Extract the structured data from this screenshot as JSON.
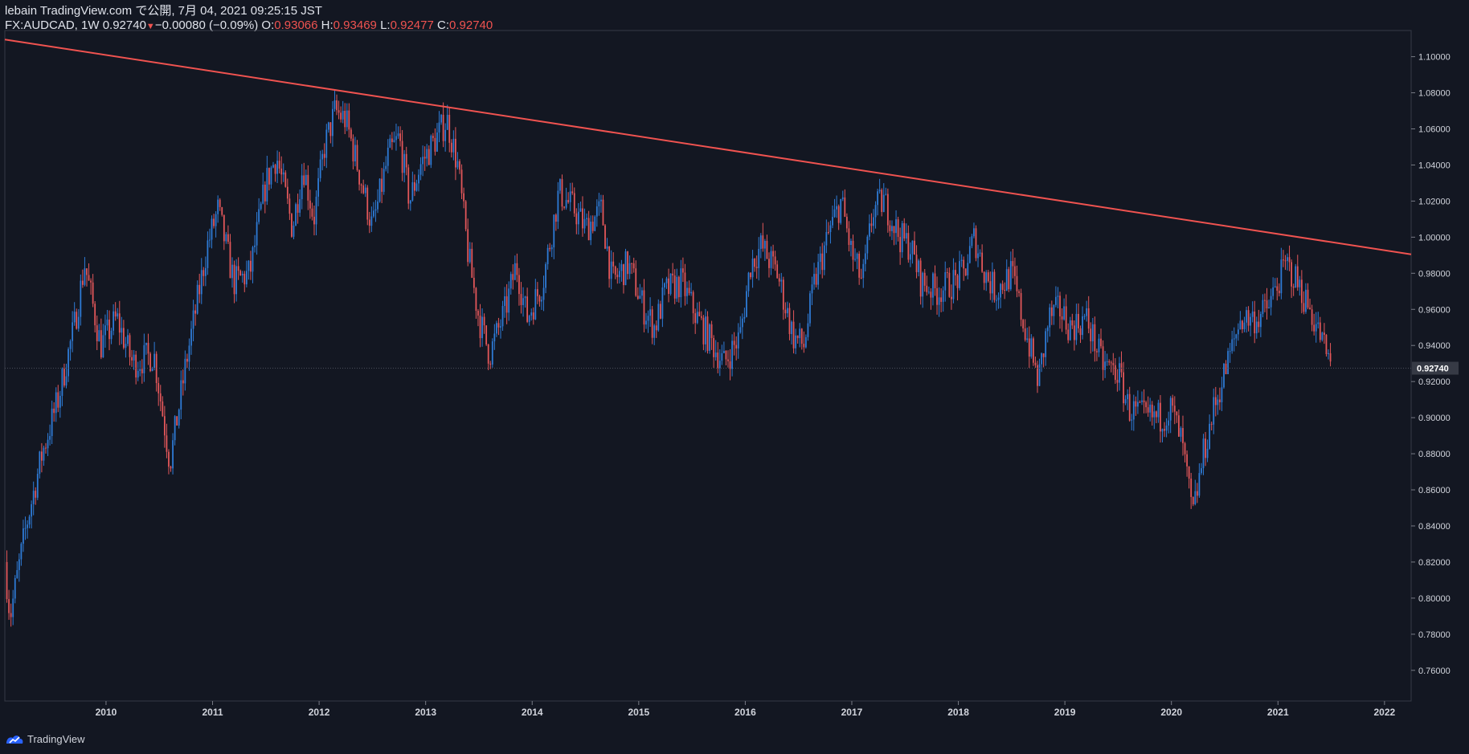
{
  "header": {
    "publish_line": "lebain TradingView.com で公開, 7月 04, 2021 09:25:15 JST",
    "symbol": "FX:AUDCAD, 1W",
    "last": "0.92740",
    "change": "−0.00080 (−0.09%)",
    "o_label": "O:",
    "o_value": "0.93066",
    "h_label": "H:",
    "h_value": "0.93469",
    "l_label": "L:",
    "l_value": "0.92477",
    "c_label": "C:",
    "c_value": "0.92740"
  },
  "brand": {
    "name": "TradingView",
    "icon": "tradingview-logo-icon"
  },
  "colors": {
    "background": "#131722",
    "up": "#2e7bd6",
    "down": "#e3575a",
    "trendline": "#f05350",
    "axis_text": "#d1d4dc",
    "price_label_bg": "#363a45"
  },
  "chart_data": {
    "type": "candlestick",
    "symbol": "FX:AUDCAD",
    "interval": "1W",
    "last_price": 0.9274,
    "ylim": [
      0.743,
      1.1145
    ],
    "xlim": [
      2009.05,
      2022.25
    ],
    "y_ticks": [
      "0.76000",
      "0.78000",
      "0.80000",
      "0.82000",
      "0.84000",
      "0.86000",
      "0.88000",
      "0.90000",
      "0.92000",
      "0.94000",
      "0.96000",
      "0.98000",
      "1.00000",
      "1.02000",
      "1.04000",
      "1.06000",
      "1.08000",
      "1.10000"
    ],
    "x_ticks": [
      "2010",
      "2011",
      "2012",
      "2013",
      "2014",
      "2015",
      "2016",
      "2017",
      "2018",
      "2019",
      "2020",
      "2021",
      "2022"
    ],
    "price_path": [
      [
        2009.05,
        0.82
      ],
      [
        2009.1,
        0.79
      ],
      [
        2009.25,
        0.84
      ],
      [
        2009.4,
        0.88
      ],
      [
        2009.55,
        0.91
      ],
      [
        2009.7,
        0.95
      ],
      [
        2009.8,
        0.985
      ],
      [
        2009.95,
        0.94
      ],
      [
        2010.1,
        0.955
      ],
      [
        2010.25,
        0.93
      ],
      [
        2010.45,
        0.935
      ],
      [
        2010.6,
        0.875
      ],
      [
        2010.75,
        0.93
      ],
      [
        2010.95,
        0.995
      ],
      [
        2011.05,
        1.015
      ],
      [
        2011.2,
        0.975
      ],
      [
        2011.35,
        0.98
      ],
      [
        2011.5,
        1.03
      ],
      [
        2011.6,
        1.045
      ],
      [
        2011.75,
        1.005
      ],
      [
        2011.85,
        1.04
      ],
      [
        2011.95,
        1.01
      ],
      [
        2012.05,
        1.05
      ],
      [
        2012.15,
        1.07
      ],
      [
        2012.25,
        1.065
      ],
      [
        2012.4,
        1.03
      ],
      [
        2012.5,
        1.005
      ],
      [
        2012.65,
        1.045
      ],
      [
        2012.75,
        1.055
      ],
      [
        2012.85,
        1.02
      ],
      [
        2012.95,
        1.04
      ],
      [
        2013.05,
        1.05
      ],
      [
        2013.2,
        1.065
      ],
      [
        2013.3,
        1.04
      ],
      [
        2013.4,
        0.99
      ],
      [
        2013.5,
        0.955
      ],
      [
        2013.6,
        0.935
      ],
      [
        2013.75,
        0.96
      ],
      [
        2013.85,
        0.985
      ],
      [
        2013.95,
        0.955
      ],
      [
        2014.1,
        0.975
      ],
      [
        2014.25,
        1.025
      ],
      [
        2014.4,
        1.015
      ],
      [
        2014.5,
        1.005
      ],
      [
        2014.65,
        1.015
      ],
      [
        2014.75,
        0.975
      ],
      [
        2014.9,
        0.985
      ],
      [
        2015.05,
        0.96
      ],
      [
        2015.15,
        0.95
      ],
      [
        2015.25,
        0.97
      ],
      [
        2015.4,
        0.975
      ],
      [
        2015.55,
        0.955
      ],
      [
        2015.7,
        0.94
      ],
      [
        2015.8,
        0.93
      ],
      [
        2015.95,
        0.945
      ],
      [
        2016.05,
        0.985
      ],
      [
        2016.15,
        0.995
      ],
      [
        2016.3,
        0.98
      ],
      [
        2016.45,
        0.945
      ],
      [
        2016.55,
        0.94
      ],
      [
        2016.65,
        0.975
      ],
      [
        2016.8,
        1.005
      ],
      [
        2016.9,
        1.02
      ],
      [
        2017.0,
        0.99
      ],
      [
        2017.1,
        0.975
      ],
      [
        2017.2,
        1.015
      ],
      [
        2017.3,
        1.02
      ],
      [
        2017.45,
        1.0
      ],
      [
        2017.55,
        0.995
      ],
      [
        2017.65,
        0.975
      ],
      [
        2017.8,
        0.97
      ],
      [
        2017.95,
        0.975
      ],
      [
        2018.05,
        0.98
      ],
      [
        2018.15,
        1.0
      ],
      [
        2018.25,
        0.98
      ],
      [
        2018.35,
        0.97
      ],
      [
        2018.5,
        0.98
      ],
      [
        2018.6,
        0.955
      ],
      [
        2018.75,
        0.92
      ],
      [
        2018.85,
        0.955
      ],
      [
        2018.95,
        0.96
      ],
      [
        2019.05,
        0.95
      ],
      [
        2019.2,
        0.955
      ],
      [
        2019.35,
        0.93
      ],
      [
        2019.5,
        0.925
      ],
      [
        2019.6,
        0.905
      ],
      [
        2019.75,
        0.9
      ],
      [
        2019.9,
        0.9
      ],
      [
        2020.0,
        0.905
      ],
      [
        2020.1,
        0.885
      ],
      [
        2020.2,
        0.845
      ],
      [
        2020.3,
        0.88
      ],
      [
        2020.4,
        0.905
      ],
      [
        2020.55,
        0.935
      ],
      [
        2020.65,
        0.955
      ],
      [
        2020.8,
        0.955
      ],
      [
        2020.9,
        0.96
      ],
      [
        2021.0,
        0.975
      ],
      [
        2021.08,
        0.985
      ],
      [
        2021.18,
        0.975
      ],
      [
        2021.3,
        0.96
      ],
      [
        2021.4,
        0.945
      ],
      [
        2021.5,
        0.9274
      ]
    ],
    "trendline": {
      "start": [
        2009.05,
        1.1095
      ],
      "end": [
        2022.25,
        0.9905
      ]
    }
  }
}
